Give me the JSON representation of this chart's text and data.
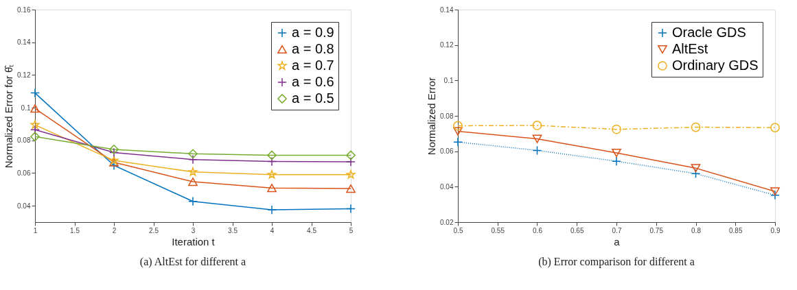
{
  "chart_data": [
    {
      "type": "line",
      "title": "(a) AltEst for different a",
      "xlabel": "Iteration t",
      "ylabel": "Normalized Error for θ̂ₜ",
      "x": [
        1,
        2,
        3,
        4,
        5
      ],
      "xlim": [
        1,
        5
      ],
      "xticks": [
        1,
        1.5,
        2,
        2.5,
        3,
        3.5,
        4,
        4.5,
        5
      ],
      "ylim": [
        0.03,
        0.16
      ],
      "yticks": [
        0.04,
        0.06,
        0.08,
        0.1,
        0.12,
        0.14,
        0.16
      ],
      "grid": false,
      "legend": "top right",
      "series": [
        {
          "name": "a = 0.9",
          "color": "#0072bd",
          "marker": "cross",
          "line_style": "solid",
          "values": [
            0.109,
            0.0647,
            0.0427,
            0.0375,
            0.0382
          ]
        },
        {
          "name": "a = 0.8",
          "color": "#d95319",
          "marker": "triangle",
          "line_style": "solid",
          "values": [
            0.0995,
            0.0666,
            0.0547,
            0.0509,
            0.0505
          ]
        },
        {
          "name": "a = 0.7",
          "color": "#edb120",
          "marker": "star",
          "line_style": "solid",
          "values": [
            0.0895,
            0.0677,
            0.0607,
            0.059,
            0.059
          ]
        },
        {
          "name": "a = 0.6",
          "color": "#7e2f8e",
          "marker": "cross",
          "line_style": "solid",
          "values": [
            0.0865,
            0.0726,
            0.0683,
            0.0671,
            0.0669
          ]
        },
        {
          "name": "a = 0.5",
          "color": "#77ac30",
          "marker": "diamond",
          "line_style": "solid",
          "values": [
            0.0823,
            0.0745,
            0.0718,
            0.0709,
            0.0709
          ]
        }
      ]
    },
    {
      "type": "line",
      "title": "(b) Error comparison for different a",
      "xlabel": "a",
      "ylabel": "Normalized Error",
      "x": [
        0.5,
        0.6,
        0.7,
        0.8,
        0.9
      ],
      "xlim": [
        0.5,
        0.9
      ],
      "xticks": [
        0.5,
        0.55,
        0.6,
        0.65,
        0.7,
        0.75,
        0.8,
        0.85,
        0.9
      ],
      "ylim": [
        0.02,
        0.14
      ],
      "yticks": [
        0.02,
        0.04,
        0.06,
        0.08,
        0.1,
        0.12,
        0.14
      ],
      "grid": false,
      "legend": "top right",
      "series": [
        {
          "name": "Oracle GDS",
          "color": "#0072bd",
          "marker": "cross",
          "line_style": "dotted",
          "values": [
            0.0652,
            0.0605,
            0.0544,
            0.0474,
            0.0352
          ]
        },
        {
          "name": "AltEst",
          "color": "#d95319",
          "marker": "triangle-down",
          "line_style": "solid",
          "values": [
            0.0713,
            0.067,
            0.0591,
            0.0505,
            0.0373
          ]
        },
        {
          "name": "Ordinary GDS",
          "color": "#edb120",
          "marker": "circle",
          "line_style": "dashed",
          "values": [
            0.0744,
            0.0746,
            0.0724,
            0.0736,
            0.0734
          ]
        }
      ]
    }
  ]
}
